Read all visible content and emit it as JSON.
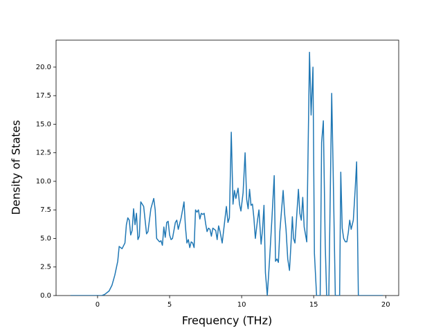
{
  "chart_data": {
    "type": "line",
    "xlabel": "Frequency (THz)",
    "ylabel": "Density of States",
    "xlim": [
      -2.88,
      20.9
    ],
    "ylim": [
      0,
      22.36
    ],
    "xticks": [
      0,
      5,
      10,
      15,
      20
    ],
    "yticks": [
      {
        "value": 0,
        "label": "0.0"
      },
      2.5,
      {
        "value": 5,
        "label": "5.0"
      },
      7.5,
      {
        "value": 10,
        "label": "10.0"
      },
      12.5,
      {
        "value": 15,
        "label": "15.0"
      },
      17.5,
      {
        "value": 20,
        "label": "20.0"
      }
    ],
    "series": [
      {
        "color": "#1f77b4",
        "x": [
          -1.88,
          0.3,
          0.5,
          0.8,
          1.0,
          1.2,
          1.4,
          1.5,
          1.7,
          1.9,
          2.0,
          2.1,
          2.2,
          2.3,
          2.4,
          2.5,
          2.6,
          2.7,
          2.8,
          2.9,
          3.0,
          3.2,
          3.4,
          3.5,
          3.7,
          3.9,
          4.0,
          4.1,
          4.3,
          4.4,
          4.5,
          4.6,
          4.7,
          4.8,
          4.9,
          5.0,
          5.1,
          5.2,
          5.4,
          5.5,
          5.6,
          5.8,
          6.0,
          6.1,
          6.2,
          6.3,
          6.4,
          6.5,
          6.6,
          6.7,
          6.8,
          6.9,
          7.0,
          7.1,
          7.2,
          7.3,
          7.4,
          7.5,
          7.6,
          7.7,
          7.8,
          7.9,
          8.0,
          8.2,
          8.3,
          8.4,
          8.5,
          8.65,
          8.94,
          9.05,
          9.15,
          9.28,
          9.4,
          9.5,
          9.6,
          9.75,
          9.85,
          9.95,
          10.1,
          10.24,
          10.35,
          10.45,
          10.55,
          10.65,
          10.75,
          10.85,
          10.95,
          11.1,
          11.2,
          11.35,
          11.45,
          11.55,
          11.65,
          11.78,
          11.95,
          12.1,
          12.26,
          12.35,
          12.45,
          12.55,
          12.65,
          12.88,
          12.98,
          13.08,
          13.2,
          13.32,
          13.42,
          13.52,
          13.6,
          13.7,
          13.94,
          14.04,
          14.14,
          14.24,
          14.34,
          14.52,
          14.71,
          14.82,
          14.95,
          15.05,
          15.2,
          15.45,
          15.55,
          15.67,
          15.8,
          15.9,
          16.05,
          16.25,
          16.35,
          16.5,
          16.8,
          16.88,
          16.98,
          17.08,
          17.2,
          17.3,
          17.4,
          17.5,
          17.6,
          17.75,
          17.88,
          17.98,
          18.1,
          19.8
        ],
        "values": [
          0,
          0,
          0.1,
          0.4,
          0.9,
          1.8,
          3.0,
          4.3,
          4.1,
          4.6,
          6.2,
          6.8,
          6.6,
          5.3,
          5.7,
          7.6,
          6.2,
          7.2,
          4.9,
          5.2,
          8.2,
          7.8,
          5.4,
          5.6,
          7.6,
          8.5,
          7.5,
          5.0,
          4.7,
          4.8,
          4.4,
          6.0,
          5.1,
          6.4,
          6.5,
          5.3,
          4.9,
          5.0,
          6.4,
          6.6,
          5.8,
          6.8,
          8.2,
          6.0,
          4.6,
          4.9,
          4.2,
          4.7,
          4.6,
          4.2,
          7.5,
          7.3,
          7.5,
          6.7,
          7.2,
          7.1,
          7.2,
          6.3,
          5.6,
          5.9,
          5.8,
          5.2,
          5.9,
          5.7,
          4.9,
          6.1,
          5.6,
          4.6,
          7.8,
          6.4,
          6.8,
          14.3,
          8.0,
          9.2,
          8.5,
          9.4,
          8.0,
          7.4,
          9.0,
          12.5,
          8.4,
          7.6,
          9.3,
          7.9,
          8.0,
          6.8,
          5.0,
          6.6,
          7.5,
          4.5,
          5.8,
          7.9,
          2.0,
          0,
          3.4,
          6.7,
          10.5,
          3.0,
          3.2,
          2.9,
          5.6,
          9.2,
          7.2,
          5.8,
          3.2,
          2.2,
          4.4,
          6.9,
          5.0,
          4.6,
          9.3,
          7.2,
          6.6,
          8.6,
          6.0,
          4.7,
          21.3,
          15.8,
          20.0,
          3.7,
          0,
          0,
          13.4,
          15.3,
          4.5,
          0,
          0,
          17.7,
          11.0,
          0,
          0,
          10.8,
          5.9,
          5.0,
          4.7,
          4.7,
          5.5,
          6.6,
          5.8,
          6.6,
          9.3,
          11.7,
          0,
          0
        ]
      }
    ]
  }
}
